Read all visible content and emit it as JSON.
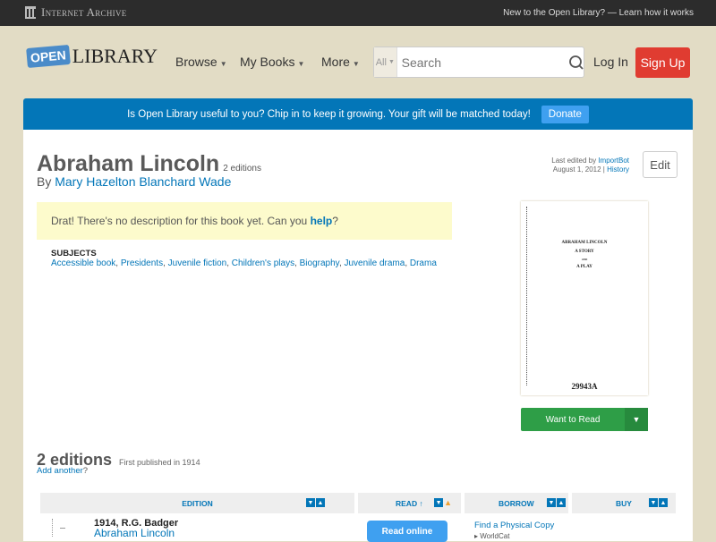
{
  "topbar": {
    "brand": "Internet Archive",
    "new_text": "New to the Open Library? —",
    "learn_link": "Learn how it works"
  },
  "header": {
    "logo_open": "OPEN",
    "logo_library": "LIBRARY",
    "nav": [
      "Browse",
      "My Books",
      "More"
    ],
    "search_scope": "All",
    "search_placeholder": "Search",
    "login": "Log In",
    "signup": "Sign Up"
  },
  "banner": {
    "text": "Is Open Library useful to you? Chip in to keep it growing. Your gift will be matched today!",
    "donate": "Donate"
  },
  "book": {
    "title": "Abraham Lincoln",
    "editions_count": "2 editions",
    "by": "By",
    "author": "Mary Hazelton Blanchard Wade",
    "description_prefix": "Drat! There's no description for this book yet. Can you",
    "help": "help",
    "description_suffix": "?",
    "subjects_label": "SUBJECTS",
    "subjects": [
      "Accessible book",
      "Presidents",
      "Juvenile fiction",
      "Children's plays",
      "Biography",
      "Juvenile drama",
      "Drama"
    ],
    "last_edited_by": "Last edited by",
    "editor": "ImportBot",
    "edited_date": "August 1, 2012 |",
    "history": "History",
    "edit": "Edit",
    "cover_lines": [
      "ABRAHAM LINCOLN",
      "A STORY",
      "AND",
      "A PLAY"
    ],
    "cover_number": "29943A",
    "want_to_read": "Want to Read"
  },
  "editions": {
    "heading": "2 editions",
    "first_published": "First published in 1914",
    "add_another": "Add another",
    "add_suffix": "?",
    "columns": [
      "EDITION",
      "READ ↑",
      "BORROW",
      "BUY"
    ],
    "rows": [
      {
        "publish": "1914, R.G. Badger",
        "title": "Abraham Lincoln",
        "read": "Read online",
        "borrow": "Find a Physical Copy",
        "borrow_sub": "WorldCat"
      }
    ]
  },
  "colors": {
    "topbar": "#2c2c2c",
    "background": "#e2dcc5",
    "banner": "#0376b8",
    "signup": "#e03c31",
    "want_to_read": "#2e9e47",
    "link": "#0376b8"
  }
}
